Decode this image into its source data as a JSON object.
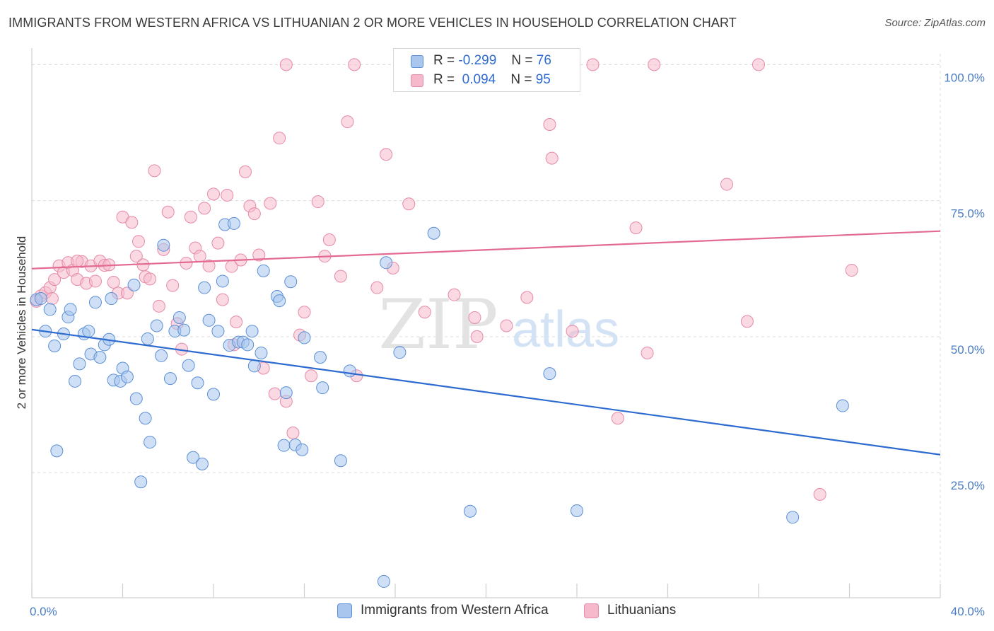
{
  "header": {
    "title": "IMMIGRANTS FROM WESTERN AFRICA VS LITHUANIAN 2 OR MORE VEHICLES IN HOUSEHOLD CORRELATION CHART",
    "source": "Source: ZipAtlas.com"
  },
  "legend": {
    "series1": {
      "r_label": "R =",
      "r_value": "-0.299",
      "n_label": "N =",
      "n_value": "76"
    },
    "series2": {
      "r_label": "R =",
      "r_value": "0.094",
      "n_label": "N =",
      "n_value": "95"
    }
  },
  "colors": {
    "blue_fill": "#a8c6ee",
    "blue_stroke": "#5b8fd6",
    "blue_line": "#2e6bd1",
    "pink_fill": "#f6b9cc",
    "pink_stroke": "#e68aa7",
    "pink_line": "#e26a93",
    "tick_text": "#4a7cc4",
    "grid": "#dddddd"
  },
  "watermark": {
    "zip": "ZIP",
    "atlas": "atlas"
  },
  "chart_data": {
    "type": "scatter",
    "title": "IMMIGRANTS FROM WESTERN AFRICA VS LITHUANIAN 2 OR MORE VEHICLES IN HOUSEHOLD CORRELATION CHART",
    "xlabel": "",
    "ylabel": "2 or more Vehicles in Household",
    "xlim": [
      0,
      40
    ],
    "ylim": [
      2,
      102
    ],
    "x_tick_labels": [
      "0.0%",
      "40.0%"
    ],
    "y_tick_labels": [
      "25.0%",
      "50.0%",
      "75.0%",
      "100.0%"
    ],
    "y_ticks": [
      25,
      50,
      75,
      100
    ],
    "grid": true,
    "legend_position": "top-center",
    "series": [
      {
        "name": "Immigrants from Western Africa",
        "color": "#a8c6ee",
        "trend": {
          "x": [
            0,
            40
          ],
          "y": [
            51.3,
            28.3
          ]
        },
        "points": [
          [
            0.2,
            56.8
          ],
          [
            0.4,
            57.0
          ],
          [
            0.6,
            51.0
          ],
          [
            0.8,
            55.0
          ],
          [
            1.0,
            48.3
          ],
          [
            1.1,
            29.0
          ],
          [
            1.4,
            50.5
          ],
          [
            1.6,
            53.6
          ],
          [
            1.7,
            55.0
          ],
          [
            1.9,
            41.8
          ],
          [
            2.1,
            45.0
          ],
          [
            2.3,
            50.5
          ],
          [
            2.5,
            51.0
          ],
          [
            2.6,
            46.8
          ],
          [
            2.8,
            56.3
          ],
          [
            3.0,
            46.2
          ],
          [
            3.2,
            48.5
          ],
          [
            3.4,
            49.5
          ],
          [
            3.5,
            57.0
          ],
          [
            3.6,
            42.0
          ],
          [
            3.9,
            41.8
          ],
          [
            4.0,
            44.2
          ],
          [
            4.2,
            42.6
          ],
          [
            4.5,
            59.5
          ],
          [
            4.6,
            38.6
          ],
          [
            4.8,
            23.3
          ],
          [
            5.0,
            35.0
          ],
          [
            5.1,
            49.6
          ],
          [
            5.2,
            30.6
          ],
          [
            5.5,
            52.0
          ],
          [
            5.7,
            46.5
          ],
          [
            5.8,
            66.8
          ],
          [
            6.1,
            42.3
          ],
          [
            6.3,
            51.0
          ],
          [
            6.5,
            53.5
          ],
          [
            6.7,
            51.2
          ],
          [
            6.9,
            44.7
          ],
          [
            7.1,
            27.8
          ],
          [
            7.3,
            41.5
          ],
          [
            7.5,
            26.6
          ],
          [
            7.6,
            59.0
          ],
          [
            7.8,
            53.0
          ],
          [
            8.0,
            39.4
          ],
          [
            8.2,
            51.0
          ],
          [
            8.4,
            60.2
          ],
          [
            8.5,
            70.6
          ],
          [
            8.7,
            48.4
          ],
          [
            8.9,
            70.8
          ],
          [
            9.1,
            49.0
          ],
          [
            9.3,
            49.0
          ],
          [
            9.5,
            48.5
          ],
          [
            9.7,
            51.0
          ],
          [
            9.8,
            44.6
          ],
          [
            10.1,
            47.0
          ],
          [
            10.2,
            62.1
          ],
          [
            10.8,
            57.4
          ],
          [
            10.9,
            56.6
          ],
          [
            11.1,
            30.0
          ],
          [
            11.2,
            39.7
          ],
          [
            11.4,
            60.1
          ],
          [
            11.6,
            30.1
          ],
          [
            11.9,
            29.2
          ],
          [
            12.0,
            49.8
          ],
          [
            12.7,
            46.2
          ],
          [
            12.8,
            40.6
          ],
          [
            13.6,
            27.2
          ],
          [
            14.0,
            43.7
          ],
          [
            15.5,
            5.0
          ],
          [
            15.6,
            63.6
          ],
          [
            16.2,
            47.1
          ],
          [
            17.7,
            69.0
          ],
          [
            19.3,
            17.9
          ],
          [
            22.8,
            43.2
          ],
          [
            33.5,
            16.8
          ],
          [
            35.7,
            37.3
          ],
          [
            24.0,
            18.0
          ]
        ]
      },
      {
        "name": "Lithuanians",
        "color": "#f6b9cc",
        "trend": {
          "x": [
            0,
            40
          ],
          "y": [
            62.5,
            69.4
          ]
        },
        "points": [
          [
            0.2,
            56.5
          ],
          [
            0.4,
            57.5
          ],
          [
            0.6,
            58.1
          ],
          [
            0.8,
            59.0
          ],
          [
            1.0,
            60.5
          ],
          [
            1.2,
            63.0
          ],
          [
            1.4,
            61.8
          ],
          [
            1.6,
            63.6
          ],
          [
            1.8,
            62.2
          ],
          [
            2.0,
            60.5
          ],
          [
            2.2,
            63.8
          ],
          [
            2.4,
            59.8
          ],
          [
            2.6,
            63.0
          ],
          [
            2.8,
            60.2
          ],
          [
            3.0,
            63.9
          ],
          [
            3.2,
            63.1
          ],
          [
            3.4,
            63.2
          ],
          [
            3.6,
            60.0
          ],
          [
            3.8,
            58.0
          ],
          [
            4.0,
            72.0
          ],
          [
            4.2,
            58.0
          ],
          [
            4.4,
            71.0
          ],
          [
            4.6,
            64.8
          ],
          [
            4.7,
            67.5
          ],
          [
            4.9,
            63.2
          ],
          [
            5.0,
            61.0
          ],
          [
            5.2,
            60.6
          ],
          [
            5.4,
            80.5
          ],
          [
            5.6,
            55.6
          ],
          [
            5.8,
            66.0
          ],
          [
            6.0,
            72.9
          ],
          [
            6.2,
            59.4
          ],
          [
            6.4,
            52.4
          ],
          [
            6.6,
            47.7
          ],
          [
            6.8,
            63.5
          ],
          [
            7.0,
            72.0
          ],
          [
            7.2,
            66.3
          ],
          [
            7.4,
            64.8
          ],
          [
            7.6,
            73.6
          ],
          [
            7.8,
            63.0
          ],
          [
            8.0,
            76.2
          ],
          [
            8.2,
            67.2
          ],
          [
            8.4,
            56.8
          ],
          [
            8.6,
            76.0
          ],
          [
            8.8,
            62.9
          ],
          [
            9.0,
            52.7
          ],
          [
            9.2,
            64.1
          ],
          [
            9.4,
            80.3
          ],
          [
            9.6,
            74.0
          ],
          [
            9.8,
            72.6
          ],
          [
            10.0,
            65.0
          ],
          [
            10.2,
            44.2
          ],
          [
            10.5,
            74.5
          ],
          [
            10.7,
            39.5
          ],
          [
            10.9,
            86.5
          ],
          [
            11.2,
            38.1
          ],
          [
            11.5,
            32.3
          ],
          [
            11.8,
            50.3
          ],
          [
            12.0,
            54.5
          ],
          [
            12.3,
            42.8
          ],
          [
            12.6,
            74.8
          ],
          [
            12.9,
            64.8
          ],
          [
            13.1,
            67.8
          ],
          [
            13.6,
            61.1
          ],
          [
            13.9,
            89.5
          ],
          [
            14.3,
            42.8
          ],
          [
            15.2,
            59.0
          ],
          [
            15.6,
            83.5
          ],
          [
            15.9,
            62.6
          ],
          [
            16.6,
            74.4
          ],
          [
            17.3,
            54.5
          ],
          [
            18.6,
            57.7
          ],
          [
            19.5,
            53.5
          ],
          [
            19.6,
            50.0
          ],
          [
            20.9,
            52.0
          ],
          [
            21.8,
            57.2
          ],
          [
            22.9,
            82.8
          ],
          [
            22.8,
            89.0
          ],
          [
            23.8,
            51.0
          ],
          [
            24.7,
            100.0
          ],
          [
            25.8,
            35.0
          ],
          [
            26.6,
            70.0
          ],
          [
            27.1,
            47.0
          ],
          [
            27.4,
            100.0
          ],
          [
            30.6,
            78.0
          ],
          [
            31.5,
            52.8
          ],
          [
            32.0,
            100.0
          ],
          [
            34.7,
            21.0
          ],
          [
            36.1,
            62.2
          ],
          [
            11.2,
            100.0
          ],
          [
            18.2,
            100.0
          ],
          [
            14.2,
            100.0
          ],
          [
            8.9,
            48.5
          ],
          [
            2.0,
            63.9
          ],
          [
            0.9,
            57.0
          ]
        ]
      }
    ]
  },
  "bottom_legend": {
    "series1_label": "Immigrants from Western Africa",
    "series2_label": "Lithuanians"
  }
}
